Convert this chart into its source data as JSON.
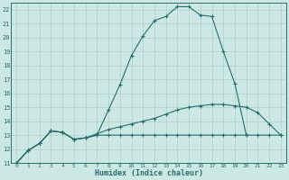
{
  "xlabel": "Humidex (Indice chaleur)",
  "background_color": "#cce8e5",
  "line_color": "#2a6e6a",
  "grid_color": "#b0d0ce",
  "xlim": [
    -0.5,
    23.5
  ],
  "ylim": [
    11,
    22.5
  ],
  "xticks": [
    0,
    1,
    2,
    3,
    4,
    5,
    6,
    7,
    8,
    9,
    10,
    11,
    12,
    13,
    14,
    15,
    16,
    17,
    18,
    19,
    20,
    21,
    22,
    23
  ],
  "yticks": [
    11,
    12,
    13,
    14,
    15,
    16,
    17,
    18,
    19,
    20,
    21,
    22
  ],
  "line1_x": [
    0,
    1,
    2,
    3,
    4,
    5,
    6,
    7,
    8,
    9,
    10,
    11,
    12,
    13,
    14,
    15,
    16,
    17,
    18,
    19,
    20
  ],
  "line1_y": [
    11.0,
    11.9,
    12.4,
    13.3,
    13.2,
    12.7,
    12.8,
    13.0,
    14.8,
    16.6,
    18.7,
    20.1,
    21.2,
    21.5,
    22.2,
    22.2,
    21.6,
    21.5,
    19.0,
    16.7,
    13.0
  ],
  "line2_x": [
    0,
    1,
    2,
    3,
    4,
    5,
    6,
    7,
    8,
    9,
    10,
    11,
    12,
    13,
    14,
    15,
    16,
    17,
    18,
    19,
    20,
    21,
    22,
    23
  ],
  "line2_y": [
    11.0,
    11.9,
    12.4,
    13.3,
    13.2,
    12.7,
    12.8,
    13.1,
    13.4,
    13.6,
    13.8,
    14.0,
    14.2,
    14.5,
    14.8,
    15.0,
    15.1,
    15.2,
    15.2,
    15.1,
    15.0,
    14.6,
    13.8,
    13.0
  ],
  "line3_x": [
    0,
    1,
    2,
    3,
    4,
    5,
    6,
    7,
    8,
    9,
    10,
    11,
    12,
    13,
    14,
    15,
    16,
    17,
    18,
    19,
    20,
    21,
    22,
    23
  ],
  "line3_y": [
    11.0,
    11.9,
    12.4,
    13.3,
    13.2,
    12.7,
    12.8,
    13.0,
    13.0,
    13.0,
    13.0,
    13.0,
    13.0,
    13.0,
    13.0,
    13.0,
    13.0,
    13.0,
    13.0,
    13.0,
    13.0,
    13.0,
    13.0,
    13.0
  ]
}
